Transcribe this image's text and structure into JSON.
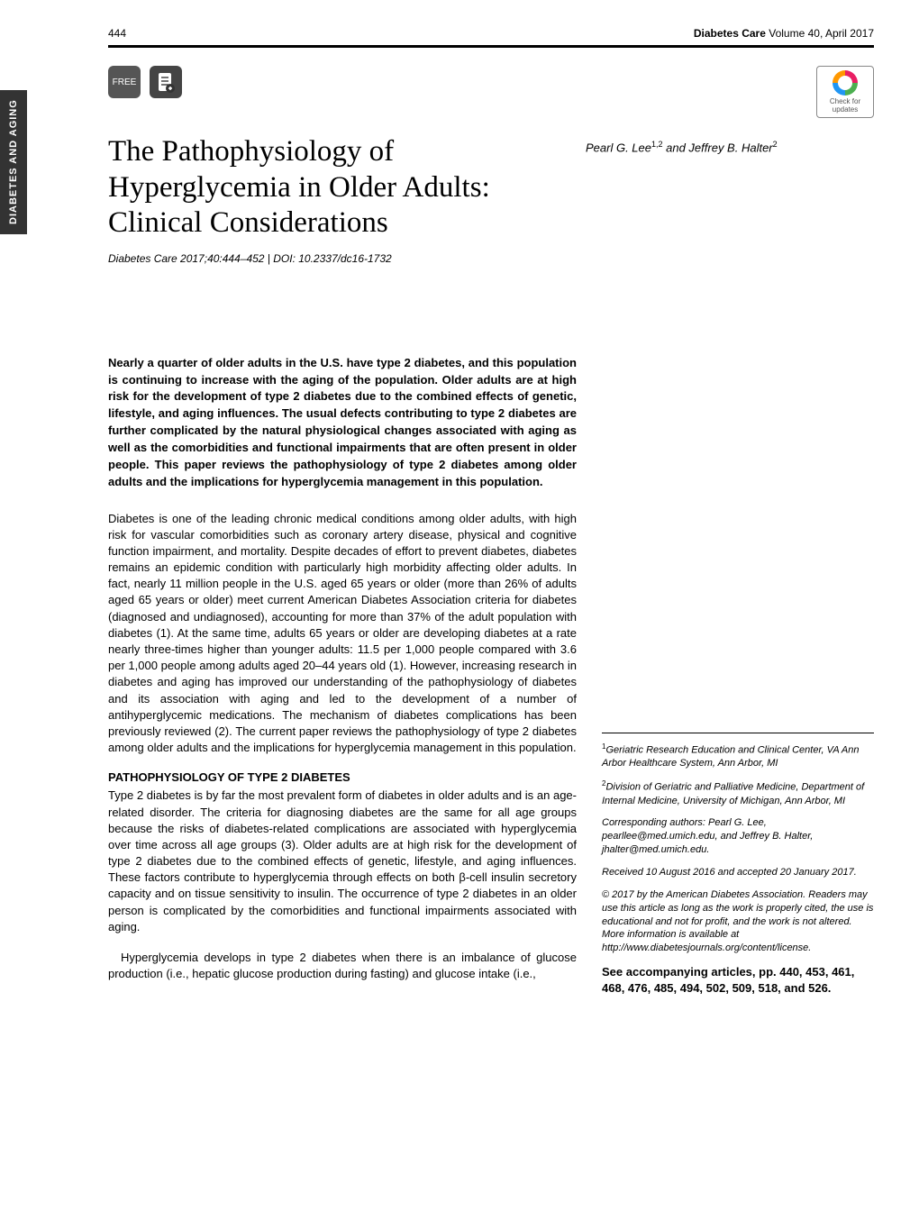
{
  "side_tab": "DIABETES AND AGING",
  "header": {
    "page_number": "444",
    "journal": "Diabetes Care",
    "volume_issue": "Volume 40, April 2017"
  },
  "icons": {
    "free": "FREE",
    "doc": "📄",
    "crossmark": "Check for updates"
  },
  "title": "The Pathophysiology of Hyperglycemia in Older Adults: Clinical Considerations",
  "citation": "Diabetes Care 2017;40:444–452 | DOI: 10.2337/dc16-1732",
  "authors_html": "Pearl G. Lee<sup>1,2</sup> and Jeffrey B. Halter<sup>2</sup>",
  "abstract": "Nearly a quarter of older adults in the U.S. have type 2 diabetes, and this population is continuing to increase with the aging of the population. Older adults are at high risk for the development of type 2 diabetes due to the combined effects of genetic, lifestyle, and aging influences. The usual defects contributing to type 2 diabetes are further complicated by the natural physiological changes associated with aging as well as the comorbidities and functional impairments that are often present in older people. This paper reviews the pathophysiology of type 2 diabetes among older adults and the implications for hyperglycemia management in this population.",
  "intro": "Diabetes is one of the leading chronic medical conditions among older adults, with high risk for vascular comorbidities such as coronary artery disease, physical and cognitive function impairment, and mortality. Despite decades of effort to prevent diabetes, diabetes remains an epidemic condition with particularly high morbidity affecting older adults. In fact, nearly 11 million people in the U.S. aged 65 years or older (more than 26% of adults aged 65 years or older) meet current American Diabetes Association criteria for diabetes (diagnosed and undiagnosed), accounting for more than 37% of the adult population with diabetes (1). At the same time, adults 65 years or older are developing diabetes at a rate nearly three-times higher than younger adults: 11.5 per 1,000 people compared with 3.6 per 1,000 people among adults aged 20–44 years old (1). However, increasing research in diabetes and aging has improved our understanding of the pathophysiology of diabetes and its association with aging and led to the development of a number of antihyperglycemic medications. The mechanism of diabetes complications has been previously reviewed (2). The current paper reviews the pathophysiology of type 2 diabetes among older adults and the implications for hyperglycemia management in this population.",
  "section_heading": "PATHOPHYSIOLOGY OF TYPE 2 DIABETES",
  "section_p1": "Type 2 diabetes is by far the most prevalent form of diabetes in older adults and is an age-related disorder. The criteria for diagnosing diabetes are the same for all age groups because the risks of diabetes-related complications are associated with hyperglycemia over time across all age groups (3). Older adults are at high risk for the development of type 2 diabetes due to the combined effects of genetic, lifestyle, and aging influences. These factors contribute to hyperglycemia through effects on both β-cell insulin secretory capacity and on tissue sensitivity to insulin. The occurrence of type 2 diabetes in an older person is complicated by the comorbidities and functional impairments associated with aging.",
  "section_p2": "Hyperglycemia develops in type 2 diabetes when there is an imbalance of glucose production (i.e., hepatic glucose production during fasting) and glucose intake (i.e.,",
  "sidebar": {
    "affil1_html": "<sup>1</sup>Geriatric Research Education and Clinical Center, VA Ann Arbor Healthcare System, Ann Arbor, MI",
    "affil2_html": "<sup>2</sup>Division of Geriatric and Palliative Medicine, Department of Internal Medicine, University of Michigan, Ann Arbor, MI",
    "corresponding": "Corresponding authors: Pearl G. Lee, pearllee@med.umich.edu, and Jeffrey B. Halter, jhalter@med.umich.edu.",
    "received": "Received 10 August 2016 and accepted 20 January 2017.",
    "copyright": "© 2017 by the American Diabetes Association. Readers may use this article as long as the work is properly cited, the use is educational and not for profit, and the work is not altered. More information is available at http://www.diabetesjournals.org/content/license.",
    "accompanying": "See accompanying articles, pp. 440, 453, 461, 468, 476, 485, 494, 502, 509, 518, and 526."
  }
}
